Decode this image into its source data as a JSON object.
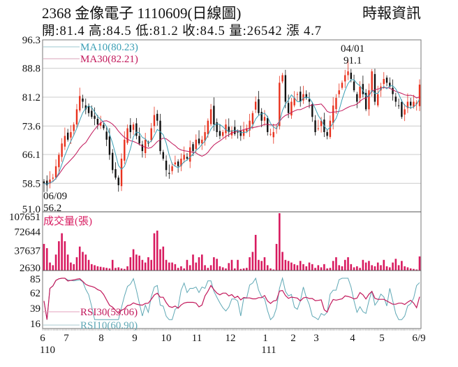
{
  "header": {
    "title": "2368  金像電子 1110609(日線圖)",
    "source": "時報資訊",
    "quote": "開:81.4 高:84.5 低:81.2 收:84.5 量:26542 漲 4.7"
  },
  "colors": {
    "up": "#e8321e",
    "down": "#111111",
    "ma10": "#3a9fb5",
    "ma30": "#c2185b",
    "volume": "#d81b60",
    "rsi10": "#5fa8b5",
    "rsi30": "#c2185b",
    "grid": "#cccccc"
  },
  "legend": {
    "ma10": "MA10(80.23)",
    "ma30": "MA30(82.21)",
    "volume": "成交量(張)",
    "rsi30": "RSI30(53.06)",
    "rsi10": "RSI10(60.90)"
  },
  "annotations": {
    "low": {
      "date": "06/09",
      "value": "56.2",
      "num": 56.2
    },
    "high": {
      "date": "04/01",
      "value": "91.1",
      "num": 91.1
    }
  },
  "chart_data": [
    {
      "type": "candlestick",
      "title": "",
      "ylim": [
        51.0,
        96.3
      ],
      "yticks": [
        "96.3",
        "88.8",
        "81.2",
        "73.6",
        "66.1",
        "58.5",
        "51.0"
      ],
      "grid": true,
      "closes": [
        58.5,
        58,
        59.5,
        60,
        63,
        66,
        69,
        71,
        70,
        72,
        74,
        78,
        81.5,
        80,
        78,
        77,
        76,
        75.5,
        74,
        74.5,
        73,
        70,
        66,
        62,
        60,
        58,
        65,
        70,
        73,
        72,
        74,
        71,
        69,
        67,
        70,
        69,
        73,
        76.5,
        75,
        67,
        65,
        62,
        61,
        63,
        64,
        63,
        65,
        66,
        65,
        68,
        67,
        70,
        69,
        70,
        72,
        75,
        78,
        74,
        72,
        71,
        72,
        74,
        72,
        72.5,
        71.5,
        72,
        71,
        72.5,
        73,
        75,
        77,
        80,
        77,
        75,
        76,
        72,
        71.5,
        72,
        73,
        85,
        87,
        80,
        77,
        80,
        81,
        82,
        80,
        82,
        81,
        80,
        76,
        72,
        73,
        75,
        72,
        71,
        75,
        79,
        81,
        83,
        85,
        87,
        88,
        86,
        83,
        80,
        84,
        82,
        78,
        83,
        88,
        80,
        82,
        84,
        86,
        85,
        84,
        82,
        80,
        79,
        76,
        78,
        80,
        79,
        80,
        79.8,
        84.5
      ],
      "series": [
        {
          "name": "MA10",
          "value": 80.23
        },
        {
          "name": "MA30",
          "value": 82.21
        }
      ]
    },
    {
      "type": "bar",
      "title": "成交量(張)",
      "ylim": [
        0,
        107651
      ],
      "yticks": [
        "107651",
        "72644",
        "37637",
        "2630"
      ],
      "values": [
        50000,
        42000,
        15000,
        10000,
        30000,
        55000,
        70000,
        55000,
        30000,
        15000,
        12000,
        25000,
        45000,
        35000,
        30000,
        20000,
        12000,
        10000,
        8000,
        7000,
        6000,
        5000,
        4000,
        20000,
        5000,
        6000,
        4000,
        3000,
        8000,
        25000,
        40000,
        30000,
        28000,
        20000,
        15000,
        25000,
        20000,
        70000,
        75000,
        40000,
        45000,
        20000,
        15000,
        15000,
        12000,
        5000,
        8000,
        4000,
        20000,
        10000,
        30000,
        15000,
        25000,
        30000,
        10000,
        5000,
        10000,
        25000,
        22000,
        8000,
        6000,
        4000,
        14000,
        20000,
        4000,
        20000,
        3000,
        4000,
        5000,
        25000,
        35000,
        67000,
        20000,
        18000,
        25000,
        10000,
        4000,
        2000,
        50000,
        107651,
        35000,
        20000,
        18000,
        15000,
        12000,
        10000,
        18000,
        12000,
        8000,
        15000,
        12000,
        5000,
        10000,
        6000,
        12000,
        4000,
        5000,
        18000,
        25000,
        10000,
        8000,
        20000,
        25000,
        12000,
        6000,
        8000,
        5000,
        20000,
        15000,
        18000,
        10000,
        8000,
        15000,
        10000,
        20000,
        8000,
        6000,
        15000,
        22000,
        10000,
        18000,
        8000,
        6000,
        4000,
        3000,
        2000,
        26542
      ]
    },
    {
      "type": "line",
      "ylim": [
        16,
        85
      ],
      "yticks": [
        "85",
        "62",
        "39",
        "16"
      ],
      "series": [
        {
          "name": "RSI30",
          "value": 53.06
        },
        {
          "name": "RSI10",
          "value": 60.9
        }
      ]
    }
  ],
  "xaxis": {
    "months": [
      "6",
      "7",
      "8",
      "9",
      "10",
      "11",
      "12",
      "1",
      "2",
      "3",
      "4",
      "5",
      "6/9"
    ],
    "years": [
      "110",
      "111"
    ]
  }
}
